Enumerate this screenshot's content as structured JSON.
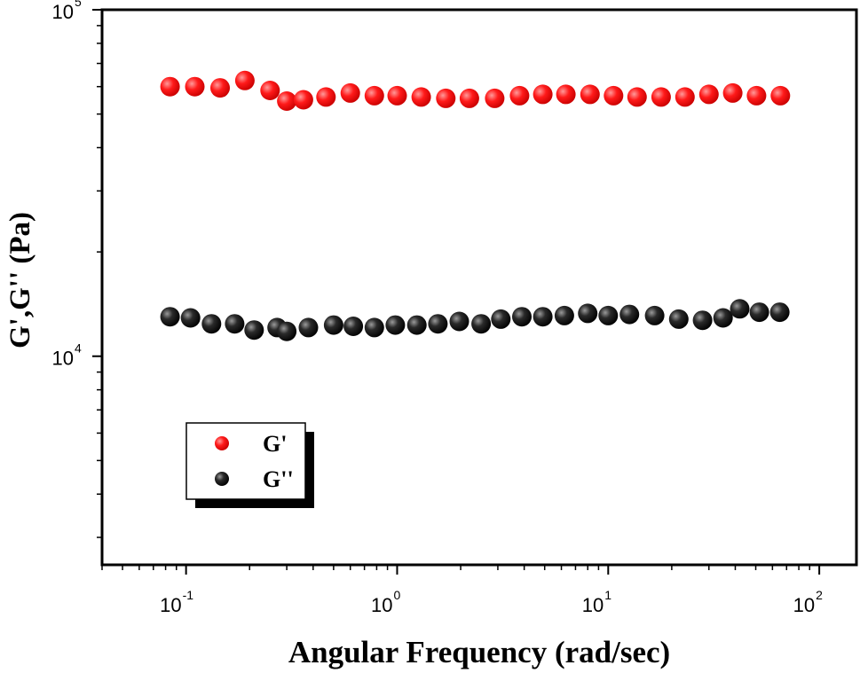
{
  "chart_data": {
    "type": "scatter",
    "xlabel": "Angular Frequency (rad/sec)",
    "ylabel": "G',G'' (Pa)",
    "xscale": "log",
    "yscale": "log",
    "xlim": [
      0.04,
      150
    ],
    "ylim": [
      2500,
      100000
    ],
    "x_ticks": [
      {
        "base": "10",
        "exp": "-1",
        "value": 0.1
      },
      {
        "base": "10",
        "exp": "0",
        "value": 1
      },
      {
        "base": "10",
        "exp": "1",
        "value": 10
      },
      {
        "base": "10",
        "exp": "2",
        "value": 100
      }
    ],
    "y_ticks": [
      {
        "base": "10",
        "exp": "4",
        "value": 10000
      },
      {
        "base": "10",
        "exp": "5",
        "value": 100000
      }
    ],
    "grid": false,
    "legend": {
      "position": "lower-left",
      "entries": [
        {
          "label": "G'",
          "color": "#ff0000"
        },
        {
          "label": "G''",
          "color": "#111111"
        }
      ]
    },
    "series": [
      {
        "name": "G'",
        "color": "#ff0000",
        "x": [
          0.084,
          0.11,
          0.145,
          0.19,
          0.25,
          0.3,
          0.36,
          0.46,
          0.6,
          0.78,
          1.0,
          1.3,
          1.7,
          2.2,
          2.9,
          3.8,
          4.9,
          6.3,
          8.2,
          10.6,
          13.7,
          17.8,
          23.1,
          30.0,
          38.9,
          50.4,
          65.4
        ],
        "y": [
          60000,
          60000,
          59500,
          62500,
          58500,
          54500,
          55000,
          56000,
          57500,
          56500,
          56500,
          56000,
          55500,
          55500,
          55500,
          56500,
          57000,
          57000,
          57000,
          56500,
          56000,
          56000,
          56000,
          57000,
          57500,
          56500,
          56500
        ]
      },
      {
        "name": "G''",
        "color": "#111111",
        "x": [
          0.084,
          0.105,
          0.132,
          0.17,
          0.21,
          0.27,
          0.3,
          0.38,
          0.5,
          0.62,
          0.78,
          0.98,
          1.24,
          1.56,
          1.97,
          2.5,
          3.1,
          3.9,
          4.9,
          6.2,
          8.0,
          10.0,
          12.6,
          16.6,
          21.6,
          28.0,
          35.0,
          42.0,
          52.0,
          65.0
        ],
        "y": [
          13000,
          12900,
          12400,
          12400,
          11900,
          12100,
          11800,
          12100,
          12300,
          12200,
          12100,
          12300,
          12300,
          12400,
          12600,
          12400,
          12800,
          13000,
          13000,
          13100,
          13300,
          13100,
          13200,
          13100,
          12800,
          12700,
          12900,
          13700,
          13400,
          13400
        ]
      }
    ]
  }
}
